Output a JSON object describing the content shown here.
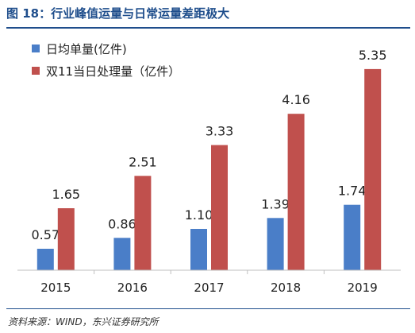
{
  "figure": {
    "title": "图 18：行业峰值运量与日常运量差距极大",
    "source": "资料来源：WIND，东兴证券研究所"
  },
  "colors": {
    "daily": "#4a7ec8",
    "double11": "#c0504d",
    "axis": "#bfbfbf",
    "title": "#1f4e8c"
  },
  "chart_data": {
    "type": "bar",
    "categories": [
      "2015",
      "2016",
      "2017",
      "2018",
      "2019"
    ],
    "series": [
      {
        "name": "日均单量(亿件)",
        "values": [
          0.57,
          0.86,
          1.1,
          1.39,
          1.74
        ],
        "labels": [
          "0.57",
          "0.86",
          "1.10",
          "1.39",
          "1.74"
        ]
      },
      {
        "name": "双11当日处理量（亿件）",
        "values": [
          1.65,
          2.51,
          3.33,
          4.16,
          5.35
        ],
        "labels": [
          "1.65",
          "2.51",
          "3.33",
          "4.16",
          "5.35"
        ]
      }
    ],
    "ylim": [
      0,
      6
    ],
    "legend": "top-left",
    "grid": false
  }
}
